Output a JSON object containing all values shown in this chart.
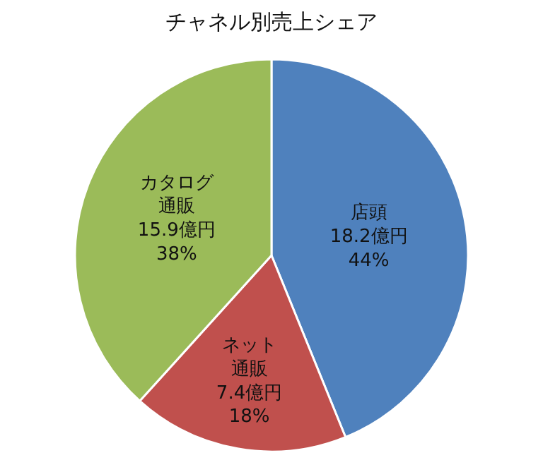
{
  "chart_data": {
    "type": "pie",
    "title": "チャネル別売上シェア",
    "categories": [
      "店頭",
      "ネット通販",
      "カタログ通販"
    ],
    "values": [
      18.2,
      7.4,
      15.9
    ],
    "colors": [
      "#4f81bd",
      "#c0504d",
      "#9bbb59"
    ],
    "value_labels": [
      "18.2億円\n44%",
      "7.4億円\n18%",
      "15.9億円\n38%"
    ],
    "legend": false
  }
}
